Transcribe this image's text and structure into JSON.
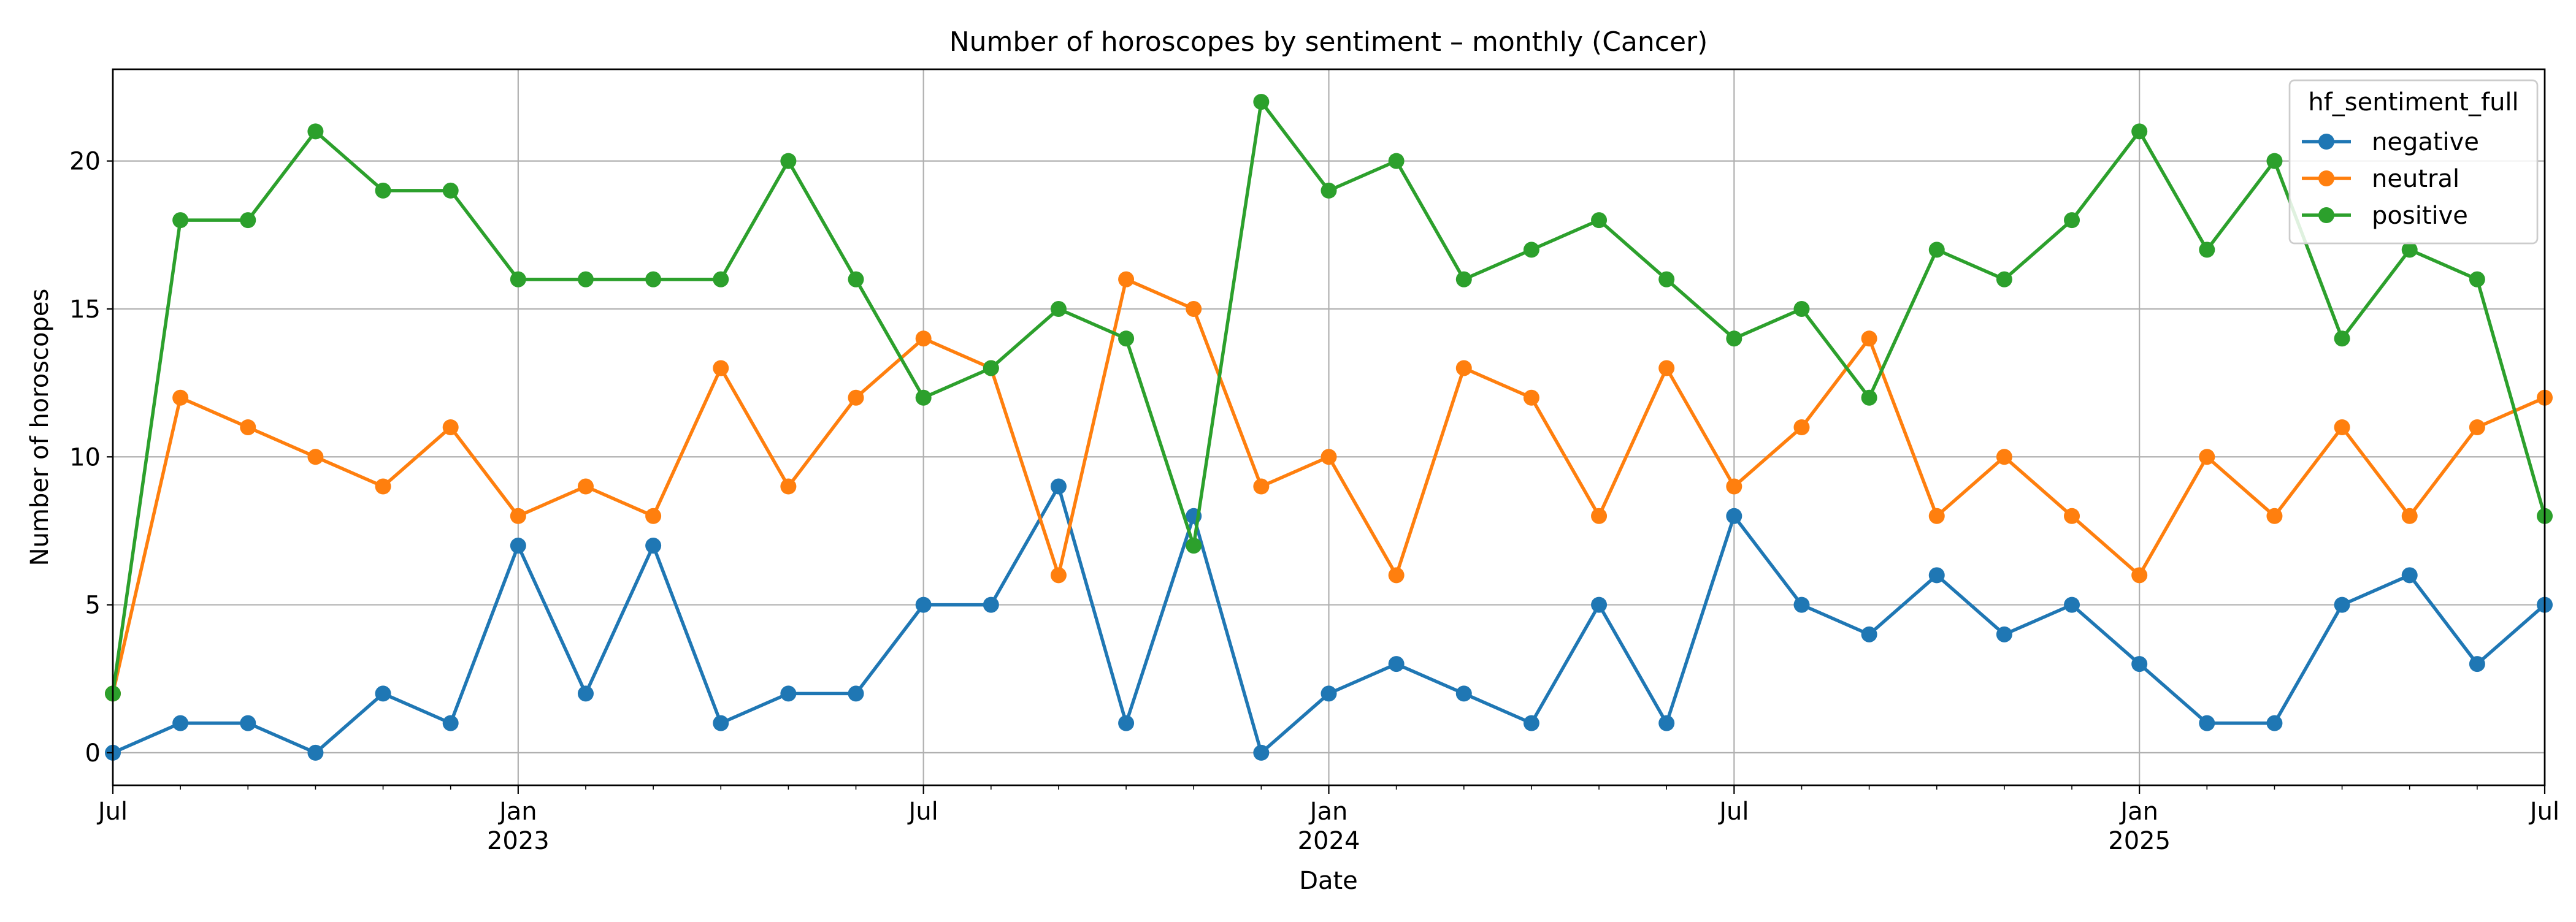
{
  "chart_data": {
    "type": "line",
    "title": "Number of horoscopes by sentiment – monthly (Cancer)",
    "xlabel": "Date",
    "ylabel": "Number of horoscopes",
    "x": [
      "2022-07",
      "2022-08",
      "2022-09",
      "2022-10",
      "2022-11",
      "2022-12",
      "2023-01",
      "2023-02",
      "2023-03",
      "2023-04",
      "2023-05",
      "2023-06",
      "2023-07",
      "2023-08",
      "2023-09",
      "2023-10",
      "2023-11",
      "2023-12",
      "2024-01",
      "2024-02",
      "2024-03",
      "2024-04",
      "2024-05",
      "2024-06",
      "2024-07",
      "2024-08",
      "2024-09",
      "2024-10",
      "2024-11",
      "2024-12",
      "2025-01",
      "2025-02",
      "2025-03",
      "2025-04",
      "2025-05",
      "2025-06",
      "2025-07"
    ],
    "xlim": [
      "2022-07",
      "2025-07"
    ],
    "ylim": [
      -1.1,
      23.1
    ],
    "yticks": [
      0,
      5,
      10,
      15,
      20
    ],
    "ytick_labels": [
      "0",
      "5",
      "10",
      "15",
      "20"
    ],
    "xticks": [
      {
        "x": "2022-07",
        "label": "Jul",
        "sublabel": ""
      },
      {
        "x": "2023-01",
        "label": "Jan",
        "sublabel": "2023"
      },
      {
        "x": "2023-07",
        "label": "Jul",
        "sublabel": ""
      },
      {
        "x": "2024-01",
        "label": "Jan",
        "sublabel": "2024"
      },
      {
        "x": "2024-07",
        "label": "Jul",
        "sublabel": ""
      },
      {
        "x": "2025-01",
        "label": "Jan",
        "sublabel": "2025"
      },
      {
        "x": "2025-07",
        "label": "Jul",
        "sublabel": ""
      }
    ],
    "grid": true,
    "legend": {
      "title": "hf_sentiment_full",
      "placement": "top-right"
    },
    "series": [
      {
        "name": "negative",
        "color": "#1f77b4",
        "values": [
          0,
          1,
          1,
          0,
          2,
          1,
          7,
          2,
          7,
          1,
          2,
          2,
          5,
          5,
          9,
          1,
          8,
          0,
          2,
          3,
          2,
          1,
          5,
          1,
          8,
          5,
          4,
          6,
          4,
          5,
          3,
          1,
          1,
          5,
          6,
          3,
          5
        ]
      },
      {
        "name": "neutral",
        "color": "#ff7f0e",
        "values": [
          2,
          12,
          11,
          10,
          9,
          11,
          8,
          9,
          8,
          13,
          9,
          12,
          14,
          13,
          6,
          16,
          15,
          9,
          10,
          6,
          13,
          12,
          8,
          13,
          9,
          11,
          14,
          8,
          10,
          8,
          6,
          10,
          8,
          11,
          8,
          11,
          12
        ]
      },
      {
        "name": "positive",
        "color": "#2ca02c",
        "values": [
          2,
          18,
          18,
          21,
          19,
          19,
          16,
          16,
          16,
          16,
          20,
          16,
          12,
          13,
          15,
          14,
          7,
          22,
          19,
          20,
          16,
          17,
          18,
          16,
          14,
          15,
          12,
          17,
          16,
          18,
          21,
          17,
          20,
          14,
          17,
          16,
          8
        ]
      }
    ]
  }
}
